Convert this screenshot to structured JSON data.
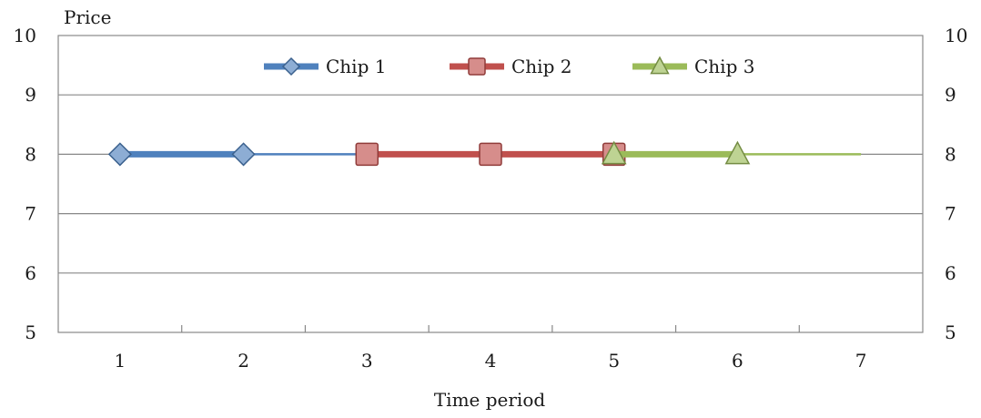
{
  "chart_data": {
    "type": "line",
    "title": "",
    "xlabel": "Time period",
    "ylabel": "Price",
    "x": [
      1,
      2,
      3,
      4,
      5,
      6,
      7
    ],
    "xlim": [
      0.5,
      7.5
    ],
    "ylim": [
      5,
      10
    ],
    "yticks": [
      5,
      6,
      7,
      8,
      9,
      10
    ],
    "secondary_y_axis": true,
    "grid": "horizontal",
    "legend_position": "top-center",
    "series": [
      {
        "name": "Chip 1",
        "color": "#4f81bd",
        "marker": "diamond",
        "points": [
          {
            "x": 1,
            "y": 8
          },
          {
            "x": 2,
            "y": 8
          }
        ],
        "continuation": [
          {
            "x": 2,
            "y": 8
          },
          {
            "x": 3,
            "y": 8
          }
        ]
      },
      {
        "name": "Chip 2",
        "color": "#c0504d",
        "marker": "square",
        "points": [
          {
            "x": 3,
            "y": 8
          },
          {
            "x": 4,
            "y": 8
          },
          {
            "x": 5,
            "y": 8
          }
        ],
        "continuation": []
      },
      {
        "name": "Chip 3",
        "color": "#9bbb59",
        "marker": "triangle",
        "points": [
          {
            "x": 5,
            "y": 8
          },
          {
            "x": 6,
            "y": 8
          }
        ],
        "continuation": [
          {
            "x": 6,
            "y": 8
          },
          {
            "x": 7,
            "y": 8
          }
        ]
      }
    ]
  }
}
